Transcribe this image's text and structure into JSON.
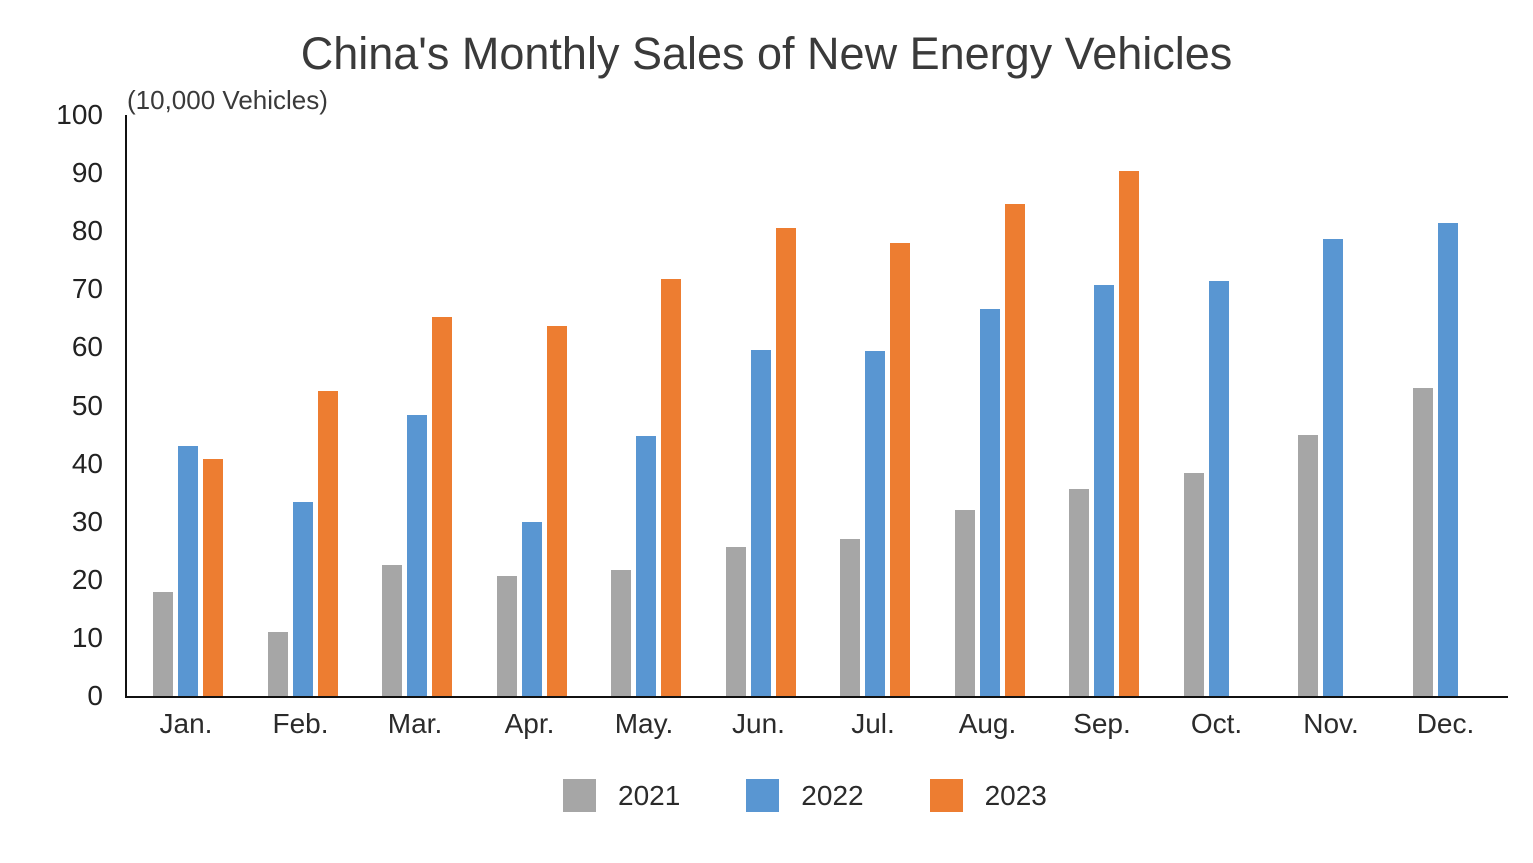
{
  "chart": {
    "title": "China's Monthly Sales of New Energy Vehicles",
    "unit_label": "(10,000 Vehicles)"
  },
  "chart_data": {
    "type": "bar",
    "title": "China's Monthly Sales of New Energy Vehicles",
    "unit_label": "(10,000 Vehicles)",
    "categories": [
      "Jan.",
      "Feb.",
      "Mar.",
      "Apr.",
      "May.",
      "Jun.",
      "Jul.",
      "Aug.",
      "Sep.",
      "Oct.",
      "Nov.",
      "Dec."
    ],
    "series": [
      {
        "name": "2021",
        "color": "#a6a6a6",
        "values": [
          17.9,
          11.0,
          22.6,
          20.6,
          21.7,
          25.6,
          27.1,
          32.1,
          35.7,
          38.3,
          45.0,
          53.1
        ]
      },
      {
        "name": "2022",
        "color": "#5996d2",
        "values": [
          43.1,
          33.4,
          48.4,
          29.9,
          44.7,
          59.6,
          59.3,
          66.6,
          70.8,
          71.4,
          78.6,
          81.4
        ]
      },
      {
        "name": "2023",
        "color": "#ed7d31",
        "values": [
          40.8,
          52.5,
          65.3,
          63.6,
          71.7,
          80.6,
          78.0,
          84.6,
          90.4,
          null,
          null,
          null
        ]
      }
    ],
    "ylim": [
      0,
      100
    ],
    "ytick_step": 10,
    "grid": false,
    "legend_position": "bottom",
    "axis_color": "#111111",
    "text_color": "#2b2b2b"
  }
}
